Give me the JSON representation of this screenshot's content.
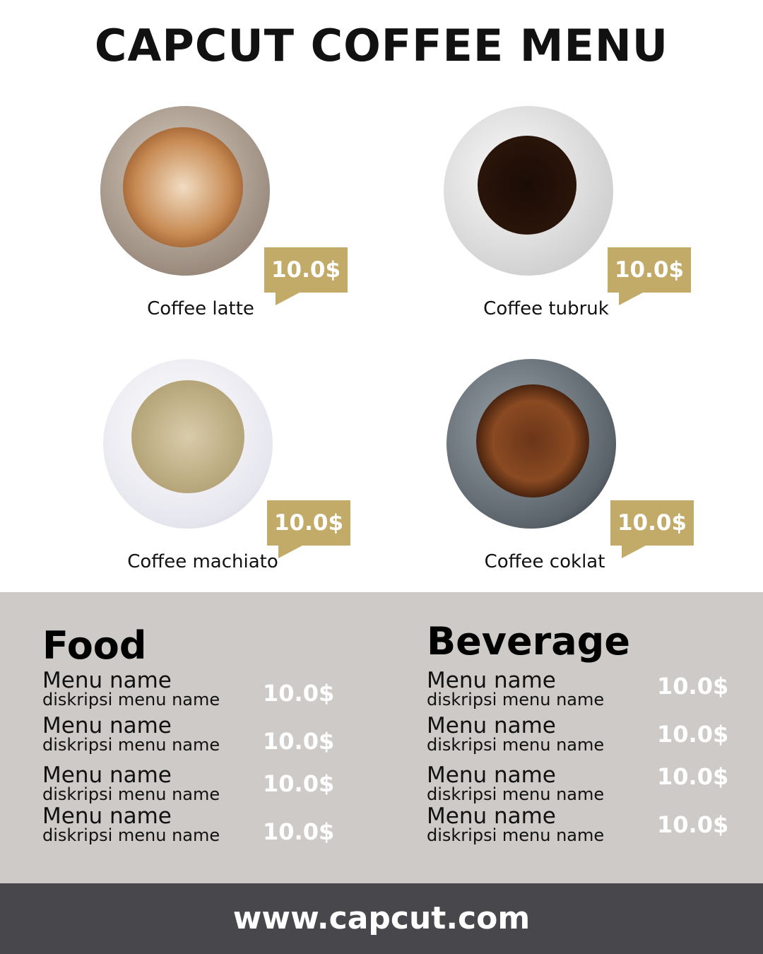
{
  "title": "CAPCUT COFFEE MENU",
  "colors": {
    "tag": "#c2ab68",
    "panel": "#cdcac7",
    "footer": "#48474c"
  },
  "products": [
    {
      "name": "Coffee latte",
      "price": "10.0$"
    },
    {
      "name": "Coffee tubruk",
      "price": "10.0$"
    },
    {
      "name": "Coffee machiato",
      "price": "10.0$"
    },
    {
      "name": "Coffee coklat",
      "price": "10.0$"
    }
  ],
  "food": {
    "heading": "Food",
    "items": [
      {
        "name": "Menu name",
        "desc": "diskripsi menu name",
        "price": "10.0$"
      },
      {
        "name": "Menu name",
        "desc": "diskripsi menu name",
        "price": "10.0$"
      },
      {
        "name": "Menu name",
        "desc": "diskripsi menu name",
        "price": "10.0$"
      },
      {
        "name": "Menu name",
        "desc": "diskripsi menu name",
        "price": "10.0$"
      }
    ]
  },
  "beverage": {
    "heading": "Beverage",
    "items": [
      {
        "name": "Menu name",
        "desc": "diskripsi menu name",
        "price": "10.0$"
      },
      {
        "name": "Menu name",
        "desc": "diskripsi menu name",
        "price": "10.0$"
      },
      {
        "name": "Menu name",
        "desc": "diskripsi menu name",
        "price": "10.0$"
      },
      {
        "name": "Menu name",
        "desc": "diskripsi menu name",
        "price": "10.0$"
      }
    ]
  },
  "footer": "www.capcut.com"
}
